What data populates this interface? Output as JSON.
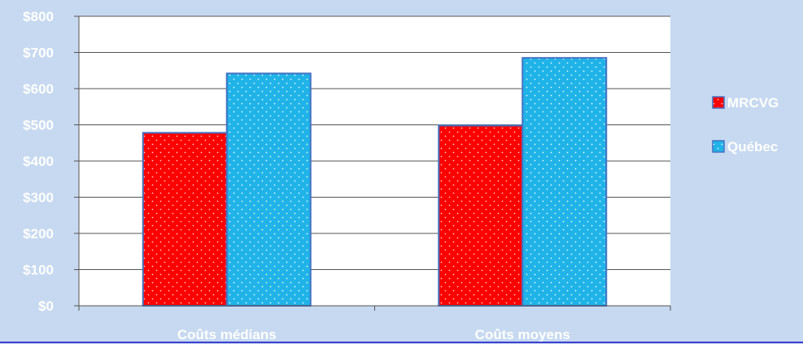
{
  "chart_data": {
    "type": "bar",
    "categories": [
      "Coûts médians",
      "Coûts moyens"
    ],
    "series": [
      {
        "name": "MRCVG",
        "values": [
          478,
          498
        ],
        "color": "#ff0000",
        "dot_color": "#ffc8c8"
      },
      {
        "name": "Québec",
        "values": [
          642,
          685
        ],
        "color": "#1fb3e8",
        "dot_color": "#e8f8ff"
      }
    ],
    "ylim": [
      0,
      800
    ],
    "y_ticks": [
      0,
      100,
      200,
      300,
      400,
      500,
      600,
      700,
      800
    ],
    "y_tick_labels": [
      "$0",
      "$100",
      "$200",
      "$300",
      "$400",
      "$500",
      "$600",
      "$700",
      "$800"
    ],
    "grid": true,
    "legend": "right",
    "title": "",
    "xlabel": "",
    "ylabel": ""
  },
  "colors": {
    "background": "#c6d9f0",
    "plot_background": "#ffffff",
    "gridline": "#555555",
    "bar_outline": "#4472c4",
    "bottom_rule": "#4040d0"
  }
}
